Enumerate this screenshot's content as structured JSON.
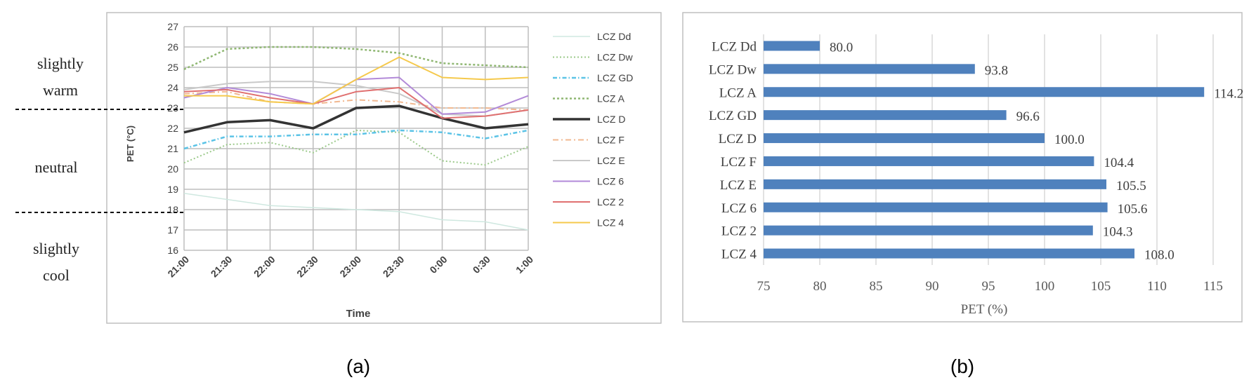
{
  "panel_a": {
    "caption": "(a)",
    "comfort_zones": [
      {
        "line1": "slightly",
        "line2": "warm"
      },
      {
        "line1": "neutral",
        "line2": ""
      },
      {
        "line1": "slightly",
        "line2": "cool"
      }
    ]
  },
  "panel_b": {
    "caption": "(b)"
  },
  "chart_data": [
    {
      "type": "line",
      "ylabel": "PET (°C)",
      "xlabel": "Time",
      "ylim": [
        16,
        27
      ],
      "yticks": [
        "16",
        "17",
        "18",
        "19",
        "20",
        "21",
        "22",
        "23",
        "24",
        "25",
        "26",
        "27"
      ],
      "categories": [
        "21:00",
        "21:30",
        "22:00",
        "22:30",
        "23:00",
        "23:30",
        "0:00",
        "0:30",
        "1:00"
      ],
      "grid": true,
      "legend_position": "right",
      "series": [
        {
          "name": "LCZ Dd",
          "color": "#cfe8e0",
          "dash": "none",
          "width": 1.5,
          "values": [
            18.8,
            18.5,
            18.2,
            18.1,
            18.0,
            17.9,
            17.5,
            17.4,
            17.0
          ]
        },
        {
          "name": "LCZ Dw",
          "color": "#9bc98a",
          "dash": "2,3",
          "width": 2,
          "values": [
            20.3,
            21.2,
            21.3,
            20.8,
            21.9,
            21.8,
            20.4,
            20.2,
            21.1
          ]
        },
        {
          "name": "LCZ GD",
          "color": "#5bc3e6",
          "dash": "6,3,1.5,3",
          "width": 2.5,
          "values": [
            21.0,
            21.6,
            21.6,
            21.7,
            21.7,
            21.9,
            21.8,
            21.5,
            21.9
          ]
        },
        {
          "name": "LCZ A",
          "color": "#8fb772",
          "dash": "3,3",
          "width": 2.5,
          "values": [
            24.9,
            25.9,
            26.0,
            26.0,
            25.9,
            25.7,
            25.2,
            25.1,
            25.0
          ]
        },
        {
          "name": "LCZ D",
          "color": "#333333",
          "dash": "none",
          "width": 3.5,
          "values": [
            21.8,
            22.3,
            22.4,
            22.0,
            23.0,
            23.1,
            22.5,
            22.0,
            22.2
          ]
        },
        {
          "name": "LCZ F",
          "color": "#f1b890",
          "dash": "8,4,2,4",
          "width": 2,
          "values": [
            23.7,
            23.8,
            23.3,
            23.2,
            23.4,
            23.3,
            23.0,
            23.0,
            22.9
          ]
        },
        {
          "name": "LCZ E",
          "color": "#c9c9c9",
          "dash": "none",
          "width": 2,
          "values": [
            23.9,
            24.2,
            24.3,
            24.3,
            24.1,
            23.7,
            22.7,
            22.6,
            22.9
          ]
        },
        {
          "name": "LCZ 6",
          "color": "#b28ad8",
          "dash": "none",
          "width": 2,
          "values": [
            23.5,
            24.0,
            23.7,
            23.2,
            24.4,
            24.5,
            22.7,
            22.8,
            23.6
          ]
        },
        {
          "name": "LCZ 2",
          "color": "#e07070",
          "dash": "none",
          "width": 2,
          "values": [
            23.8,
            23.9,
            23.5,
            23.2,
            23.8,
            24.0,
            22.5,
            22.6,
            22.9
          ]
        },
        {
          "name": "LCZ 4",
          "color": "#f5c94c",
          "dash": "none",
          "width": 2,
          "values": [
            23.6,
            23.6,
            23.3,
            23.2,
            24.4,
            25.5,
            24.5,
            24.4,
            24.5
          ]
        }
      ]
    },
    {
      "type": "bar",
      "orientation": "horizontal",
      "xlabel": "PET (%)",
      "xlim": [
        75,
        115
      ],
      "xticks": [
        "75",
        "80",
        "85",
        "90",
        "95",
        "100",
        "105",
        "110",
        "115"
      ],
      "categories": [
        "LCZ Dd",
        "LCZ Dw",
        "LCZ A",
        "LCZ GD",
        "LCZ D",
        "LCZ F",
        "LCZ E",
        "LCZ 6",
        "LCZ 2",
        "LCZ 4"
      ],
      "values": [
        80.0,
        93.8,
        114.2,
        96.6,
        100.0,
        104.4,
        105.5,
        105.6,
        104.3,
        108.0
      ],
      "labels": [
        "80.0",
        "93.8",
        "114.2",
        "96.6",
        "100.0",
        "104.4",
        "105.5",
        "105.6",
        "104.3",
        "108.0"
      ],
      "bar_color": "#4f81bd",
      "grid": true
    }
  ]
}
